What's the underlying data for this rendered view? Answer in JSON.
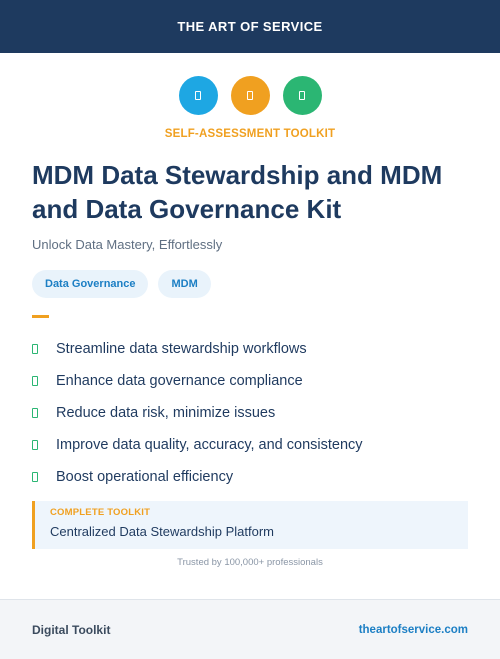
{
  "header": {
    "brand": "THE ART OF SERVICE"
  },
  "icons": [
    {
      "name": "document-icon",
      "color": "#1ea7e3"
    },
    {
      "name": "document-icon",
      "color": "#f0a020"
    },
    {
      "name": "document-icon",
      "color": "#2bb673"
    }
  ],
  "kicker": "SELF-ASSESSMENT TOOLKIT",
  "title": "MDM Data Stewardship and MDM and Data Governance Kit",
  "subtitle": "Unlock Data Mastery, Effortlessly",
  "tags": [
    "Data Governance",
    "MDM"
  ],
  "benefits": [
    "Streamline data stewardship workflows",
    "Enhance data governance compliance",
    "Reduce data risk, minimize issues",
    "Improve data quality, accuracy, and consistency",
    "Boost operational efficiency"
  ],
  "toolkit": {
    "label": "COMPLETE TOOLKIT",
    "value": "Centralized Data Stewardship Platform"
  },
  "trusted": "Trusted by 100,000+ professionals",
  "footer": {
    "left": "Digital Toolkit",
    "right": "theartofservice.com"
  },
  "colors": {
    "navy": "#1e3a5f",
    "accent": "#f0a020",
    "link": "#1c7fc4",
    "check": "#2bb673"
  }
}
